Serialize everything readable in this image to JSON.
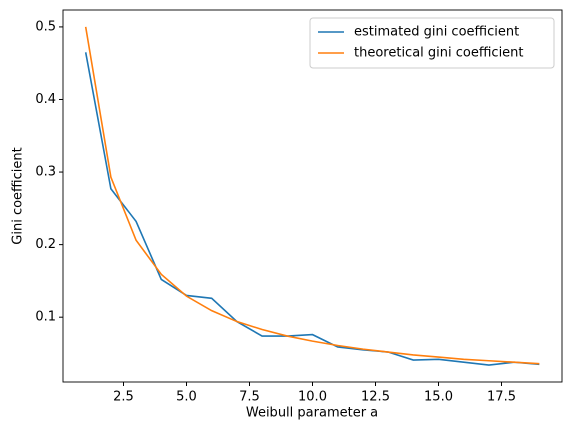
{
  "chart_data": {
    "type": "line",
    "x_label": "Weibull parameter a",
    "y_label": "Gini coefficient",
    "x": [
      1,
      2,
      3,
      4,
      5,
      6,
      7,
      8,
      9,
      10,
      11,
      12,
      13,
      14,
      15,
      16,
      17,
      18,
      19
    ],
    "series": [
      {
        "name": "estimated gini coefficient",
        "color": "#1f77b4",
        "values": [
          0.465,
          0.277,
          0.232,
          0.152,
          0.13,
          0.126,
          0.094,
          0.074,
          0.074,
          0.076,
          0.059,
          0.055,
          0.052,
          0.041,
          0.042,
          0.038,
          0.034,
          0.038,
          0.035
        ]
      },
      {
        "name": "theoretical gini coefficient",
        "color": "#ff7f0e",
        "values": [
          0.5,
          0.293,
          0.206,
          0.159,
          0.129,
          0.109,
          0.094,
          0.083,
          0.074,
          0.067,
          0.061,
          0.056,
          0.052,
          0.048,
          0.045,
          0.042,
          0.04,
          0.038,
          0.036
        ]
      }
    ],
    "xlim": [
      0.1,
      19.9
    ],
    "xticks": [
      2.5,
      {
        "value": 5,
        "label": "5.0"
      },
      7.5,
      {
        "value": 10,
        "label": "10.0"
      },
      12.5,
      {
        "value": 15,
        "label": "15.0"
      },
      17.5
    ],
    "ylim": [
      0.0107,
      0.5233
    ],
    "yticks": [
      0.1,
      0.2,
      0.3,
      0.4,
      0.5
    ],
    "legend": "upper right",
    "grid": false
  }
}
